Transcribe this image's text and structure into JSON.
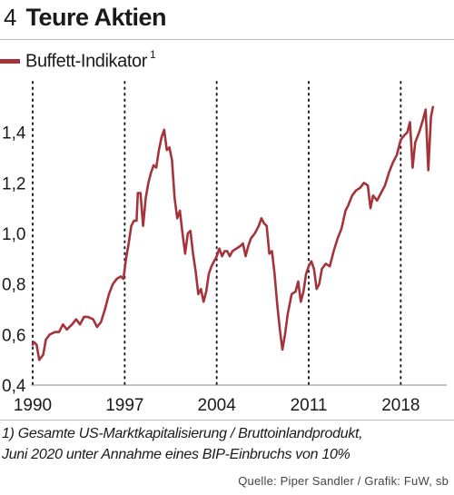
{
  "header": {
    "figure_number": "4",
    "title": "Teure Aktien"
  },
  "legend": {
    "label": "Buffett-Indikator",
    "superscript": "1"
  },
  "footnote": {
    "line1": "1) Gesamte US-Marktkapitalisierung / Bruttoinlandprodukt,",
    "line2": "Juni 2020 unter Annahme eines BIP-Einbruchs von 10%"
  },
  "source": "Quelle: Piper Sandler / Grafik: FuW, sb",
  "chart_data": {
    "type": "line",
    "title": "Teure Aktien",
    "xlabel": "",
    "ylabel": "",
    "xlim": [
      1990,
      2021.5
    ],
    "ylim": [
      0.4,
      1.6
    ],
    "x_ticks": [
      1990,
      1997,
      2004,
      2011,
      2018
    ],
    "x_tick_labels": [
      "1990",
      "1997",
      "2004",
      "2011",
      "2018"
    ],
    "y_ticks": [
      0.4,
      0.6,
      0.8,
      1.0,
      1.2,
      1.4
    ],
    "y_tick_labels": [
      "0,4",
      "0,6",
      "0,8",
      "1,0",
      "1,2",
      "1,4"
    ],
    "grid": {
      "x": true,
      "y": false,
      "style": "dotted"
    },
    "legend_position": "top-left",
    "series": [
      {
        "name": "Buffett-Indikator",
        "color": "#a4343a",
        "points": [
          [
            1990.0,
            0.56
          ],
          [
            1990.1,
            0.57
          ],
          [
            1990.3,
            0.56
          ],
          [
            1990.5,
            0.5
          ],
          [
            1990.8,
            0.52
          ],
          [
            1991.0,
            0.58
          ],
          [
            1991.3,
            0.6
          ],
          [
            1991.7,
            0.61
          ],
          [
            1992.0,
            0.61
          ],
          [
            1992.3,
            0.64
          ],
          [
            1992.6,
            0.62
          ],
          [
            1993.0,
            0.64
          ],
          [
            1993.3,
            0.66
          ],
          [
            1993.6,
            0.64
          ],
          [
            1993.9,
            0.67
          ],
          [
            1994.2,
            0.67
          ],
          [
            1994.6,
            0.66
          ],
          [
            1994.9,
            0.63
          ],
          [
            1995.2,
            0.65
          ],
          [
            1995.5,
            0.7
          ],
          [
            1995.8,
            0.76
          ],
          [
            1996.1,
            0.8
          ],
          [
            1996.4,
            0.82
          ],
          [
            1996.7,
            0.83
          ],
          [
            1996.9,
            0.82
          ],
          [
            1997.1,
            0.9
          ],
          [
            1997.3,
            0.96
          ],
          [
            1997.5,
            1.03
          ],
          [
            1997.7,
            1.05
          ],
          [
            1997.9,
            1.05
          ],
          [
            1998.0,
            1.16
          ],
          [
            1998.2,
            1.16
          ],
          [
            1998.4,
            1.03
          ],
          [
            1998.6,
            1.14
          ],
          [
            1998.8,
            1.2
          ],
          [
            1999.0,
            1.24
          ],
          [
            1999.2,
            1.27
          ],
          [
            1999.4,
            1.26
          ],
          [
            1999.6,
            1.33
          ],
          [
            1999.8,
            1.38
          ],
          [
            2000.0,
            1.41
          ],
          [
            2000.2,
            1.33
          ],
          [
            2000.4,
            1.34
          ],
          [
            2000.6,
            1.29
          ],
          [
            2000.8,
            1.14
          ],
          [
            2001.0,
            1.06
          ],
          [
            2001.2,
            1.09
          ],
          [
            2001.4,
            1.0
          ],
          [
            2001.6,
            0.92
          ],
          [
            2001.8,
            1.0
          ],
          [
            2002.0,
            1.01
          ],
          [
            2002.2,
            0.92
          ],
          [
            2002.4,
            0.85
          ],
          [
            2002.6,
            0.76
          ],
          [
            2002.8,
            0.78
          ],
          [
            2003.0,
            0.73
          ],
          [
            2003.2,
            0.77
          ],
          [
            2003.4,
            0.84
          ],
          [
            2003.6,
            0.87
          ],
          [
            2003.8,
            0.89
          ],
          [
            2004.0,
            0.91
          ],
          [
            2004.2,
            0.94
          ],
          [
            2004.4,
            0.91
          ],
          [
            2004.6,
            0.93
          ],
          [
            2004.8,
            0.93
          ],
          [
            2005.0,
            0.91
          ],
          [
            2005.2,
            0.93
          ],
          [
            2005.5,
            0.94
          ],
          [
            2005.8,
            0.95
          ],
          [
            2006.0,
            0.96
          ],
          [
            2006.2,
            0.91
          ],
          [
            2006.4,
            0.95
          ],
          [
            2006.6,
            0.98
          ],
          [
            2006.9,
            1.0
          ],
          [
            2007.2,
            1.03
          ],
          [
            2007.4,
            1.06
          ],
          [
            2007.6,
            1.04
          ],
          [
            2007.8,
            1.03
          ],
          [
            2008.0,
            0.92
          ],
          [
            2008.2,
            0.93
          ],
          [
            2008.4,
            0.84
          ],
          [
            2008.6,
            0.72
          ],
          [
            2008.8,
            0.62
          ],
          [
            2009.0,
            0.54
          ],
          [
            2009.2,
            0.6
          ],
          [
            2009.4,
            0.68
          ],
          [
            2009.7,
            0.76
          ],
          [
            2010.0,
            0.77
          ],
          [
            2010.2,
            0.81
          ],
          [
            2010.4,
            0.73
          ],
          [
            2010.6,
            0.77
          ],
          [
            2010.8,
            0.84
          ],
          [
            2011.0,
            0.87
          ],
          [
            2011.2,
            0.89
          ],
          [
            2011.4,
            0.86
          ],
          [
            2011.6,
            0.78
          ],
          [
            2011.8,
            0.8
          ],
          [
            2012.0,
            0.86
          ],
          [
            2012.3,
            0.88
          ],
          [
            2012.6,
            0.87
          ],
          [
            2012.9,
            0.93
          ],
          [
            2013.2,
            0.98
          ],
          [
            2013.5,
            1.02
          ],
          [
            2013.8,
            1.09
          ],
          [
            2014.0,
            1.11
          ],
          [
            2014.3,
            1.15
          ],
          [
            2014.6,
            1.17
          ],
          [
            2014.9,
            1.18
          ],
          [
            2015.2,
            1.2
          ],
          [
            2015.5,
            1.19
          ],
          [
            2015.7,
            1.1
          ],
          [
            2015.9,
            1.15
          ],
          [
            2016.2,
            1.13
          ],
          [
            2016.5,
            1.16
          ],
          [
            2016.8,
            1.19
          ],
          [
            2017.1,
            1.24
          ],
          [
            2017.4,
            1.28
          ],
          [
            2017.7,
            1.31
          ],
          [
            2018.0,
            1.37
          ],
          [
            2018.3,
            1.39
          ],
          [
            2018.5,
            1.4
          ],
          [
            2018.7,
            1.44
          ],
          [
            2018.9,
            1.26
          ],
          [
            2019.1,
            1.36
          ],
          [
            2019.4,
            1.4
          ],
          [
            2019.7,
            1.45
          ],
          [
            2019.9,
            1.49
          ],
          [
            2020.1,
            1.25
          ],
          [
            2020.3,
            1.46
          ],
          [
            2020.45,
            1.5
          ]
        ]
      }
    ]
  }
}
